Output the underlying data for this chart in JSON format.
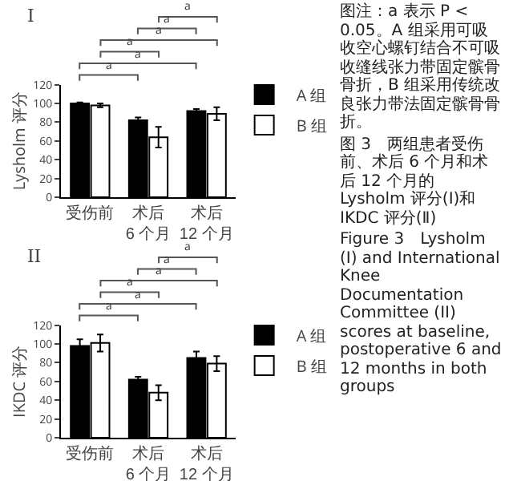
{
  "chart_data": [
    {
      "type": "bar",
      "title": "I",
      "ylabel": "Lysholm 评分",
      "categories": [
        "受伤前",
        "术后 6 个月",
        "术后 12 个月"
      ],
      "ylim": [
        0,
        120
      ],
      "yticks": [
        0,
        20,
        40,
        60,
        80,
        100,
        120
      ],
      "grid": false,
      "legend": "right",
      "series": [
        {
          "name": "A 组",
          "color": "#000000",
          "values": [
            100,
            82,
            92
          ],
          "errors": [
            1,
            3,
            2
          ]
        },
        {
          "name": "B 组",
          "color": "#ffffff",
          "values": [
            98,
            64,
            89
          ],
          "errors": [
            2,
            11,
            7
          ]
        }
      ],
      "annotations": [
        "a",
        "a",
        "a",
        "a",
        "a",
        "a"
      ]
    },
    {
      "type": "bar",
      "title": "II",
      "ylabel": "IKDC 评分",
      "categories": [
        "受伤前",
        "术后 6 个月",
        "术后 12 个月"
      ],
      "ylim": [
        0,
        120
      ],
      "yticks": [
        0,
        20,
        40,
        60,
        80,
        100,
        120
      ],
      "grid": false,
      "legend": "right",
      "series": [
        {
          "name": "A 组",
          "color": "#000000",
          "values": [
            98,
            62,
            85
          ],
          "errors": [
            7,
            3,
            7
          ]
        },
        {
          "name": "B 组",
          "color": "#ffffff",
          "values": [
            101,
            48,
            79
          ],
          "errors": [
            9,
            8,
            8
          ]
        }
      ],
      "annotations": [
        "a",
        "a",
        "a",
        "a",
        "a",
        "a"
      ]
    },
    {
      "type": "other",
      "annotations": [
        "图注：a 表示 P < 0.05。A 组采用可吸收空心螺钉结合不可吸收缝线张力带固定髌骨骨折，B 组采用传统改良张力带法固定髌骨骨折。",
        "图 3　两组患者受伤前、术后 6 个月和术后 12 个月的 Lysholm 评分(Ⅰ)和 IKDC 评分(Ⅱ)",
        "Figure 3　Lysholm (I) and International Knee Documentation Committee (II) scores at baseline, postoperative 6 and 12 months in both groups"
      ]
    }
  ]
}
